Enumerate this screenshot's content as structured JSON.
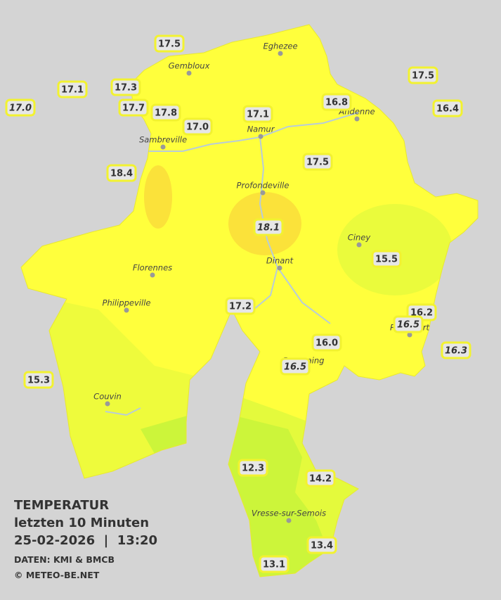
{
  "title": "TEMPERATUR",
  "subtitle": "letzten 10 Minuten",
  "timestamp": "25-02-2026  |  13:20",
  "source": "DATEN: KMI & BMCB",
  "copyright": "© METEO-BE.NET",
  "cities": [
    "Eghezee",
    "Gembloux",
    "Andenne",
    "Namur",
    "Sambreville",
    "Profondeville",
    "Ciney",
    "Dinant",
    "Florennes",
    "Philippeville",
    "Rochefort",
    "Beauraing",
    "Couvin",
    "Vresse-sur-Semois"
  ],
  "stations": [
    {
      "value": "17.5"
    },
    {
      "value": "17.1"
    },
    {
      "value": "17.3"
    },
    {
      "value": "17.0",
      "italic": true
    },
    {
      "value": "17.7"
    },
    {
      "value": "17.8"
    },
    {
      "value": "17.0"
    },
    {
      "value": "17.1"
    },
    {
      "value": "16.8"
    },
    {
      "value": "17.5"
    },
    {
      "value": "16.4"
    },
    {
      "value": "18.4"
    },
    {
      "value": "17.5"
    },
    {
      "value": "18.1",
      "italic": true
    },
    {
      "value": "15.5"
    },
    {
      "value": "17.2"
    },
    {
      "value": "16.2"
    },
    {
      "value": "16.5",
      "italic": true
    },
    {
      "value": "16.0"
    },
    {
      "value": "16.3",
      "italic": true
    },
    {
      "value": "16.5",
      "italic": true
    },
    {
      "value": "15.3"
    },
    {
      "value": "12.3"
    },
    {
      "value": "14.2"
    },
    {
      "value": "13.4"
    },
    {
      "value": "13.1"
    }
  ]
}
